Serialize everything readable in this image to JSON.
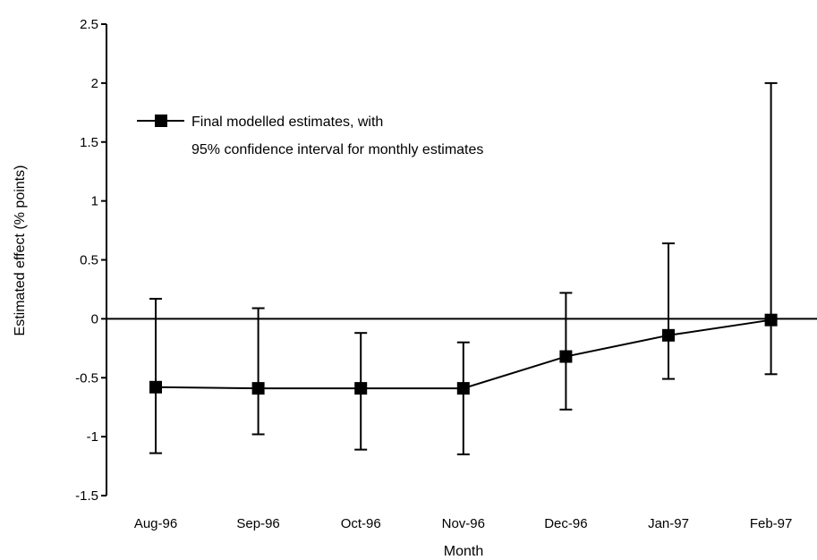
{
  "chart_data": {
    "type": "line",
    "title": "",
    "xlabel": "Month",
    "ylabel": "Estimated effect (% points)",
    "categories": [
      "Aug-96",
      "Sep-96",
      "Oct-96",
      "Nov-96",
      "Dec-96",
      "Jan-97",
      "Feb-97"
    ],
    "ylim": [
      -1.5,
      2.5
    ],
    "yticks": [
      "-1.5",
      "-1",
      "-0.5",
      "0",
      "0.5",
      "1",
      "1.5",
      "2",
      "2.5"
    ],
    "legend_position": "top-left",
    "grid": false,
    "series": [
      {
        "name": "Final modelled estimates, with 95% confidence interval for monthly estimates",
        "legend_lines": [
          "Final modelled estimates, with",
          "95% confidence interval for monthly estimates"
        ],
        "marker": "square",
        "color": "#000000",
        "values": [
          -0.58,
          -0.59,
          -0.59,
          -0.59,
          -0.32,
          -0.14,
          -0.01
        ],
        "ci_upper": [
          0.17,
          0.09,
          -0.12,
          -0.2,
          0.22,
          0.64,
          2.0
        ],
        "ci_lower": [
          -1.14,
          -0.98,
          -1.11,
          -1.15,
          -0.77,
          -0.51,
          -0.47
        ]
      }
    ]
  }
}
